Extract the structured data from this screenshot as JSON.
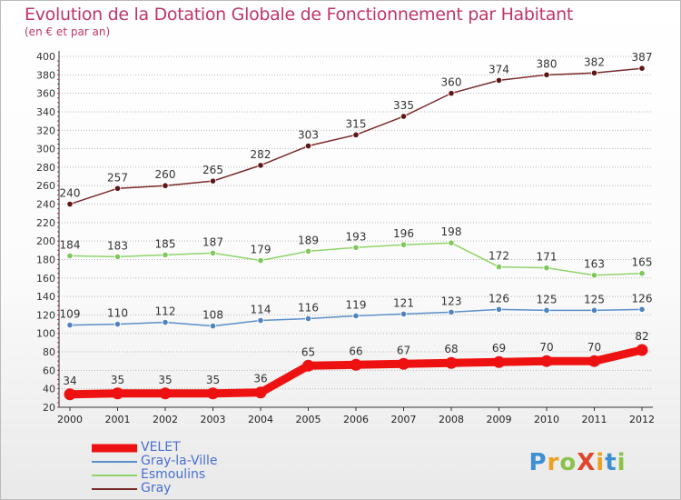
{
  "header": {
    "title": "Evolution de la Dotation Globale de Fonctionnement par Habitant",
    "subtitle": "(en € et par an)"
  },
  "logo": {
    "text": "ProXiti"
  },
  "colors": {
    "title": "#c0346a",
    "legend_text": "#4a6fd1",
    "grid": "#b6b6b6"
  },
  "chart_data": {
    "type": "line",
    "title": "Evolution de la Dotation Globale de Fonctionnement par Habitant",
    "subtitle": "(en € et par an)",
    "xlabel": "",
    "ylabel": "",
    "x": [
      "2000",
      "2001",
      "2002",
      "2003",
      "2004",
      "2005",
      "2006",
      "2007",
      "2008",
      "2009",
      "2010",
      "2011",
      "2012"
    ],
    "ylim": [
      20,
      400
    ],
    "ytick_step": 20,
    "yticks": [
      "20",
      "40",
      "60",
      "80",
      "100",
      "120",
      "140",
      "160",
      "180",
      "200",
      "220",
      "240",
      "260",
      "280",
      "300",
      "320",
      "340",
      "360",
      "380",
      "400"
    ],
    "grid": "horizontal dotted",
    "legend_position": "bottom-left",
    "series": [
      {
        "name": "VELET",
        "color": "#ee1111",
        "marker_color": "#ee1111",
        "line_style": "thick",
        "values": [
          34,
          35,
          35,
          35,
          36,
          65,
          66,
          67,
          68,
          69,
          70,
          70,
          82
        ]
      },
      {
        "name": "Gray-la-Ville",
        "color": "#5b8fc9",
        "marker_color": "#4e83c0",
        "line_style": "thin",
        "values": [
          109,
          110,
          112,
          108,
          114,
          116,
          119,
          121,
          123,
          126,
          125,
          125,
          126
        ]
      },
      {
        "name": "Esmoulins",
        "color": "#8fd46a",
        "marker_color": "#7ec95a",
        "line_style": "thin",
        "values": [
          184,
          183,
          185,
          187,
          179,
          189,
          193,
          196,
          198,
          172,
          171,
          163,
          165
        ]
      },
      {
        "name": "Gray",
        "color": "#7a2a2a",
        "marker_color": "#5e1515",
        "line_style": "thin",
        "values": [
          240,
          257,
          260,
          265,
          282,
          303,
          315,
          335,
          360,
          374,
          380,
          382,
          387
        ]
      }
    ]
  }
}
